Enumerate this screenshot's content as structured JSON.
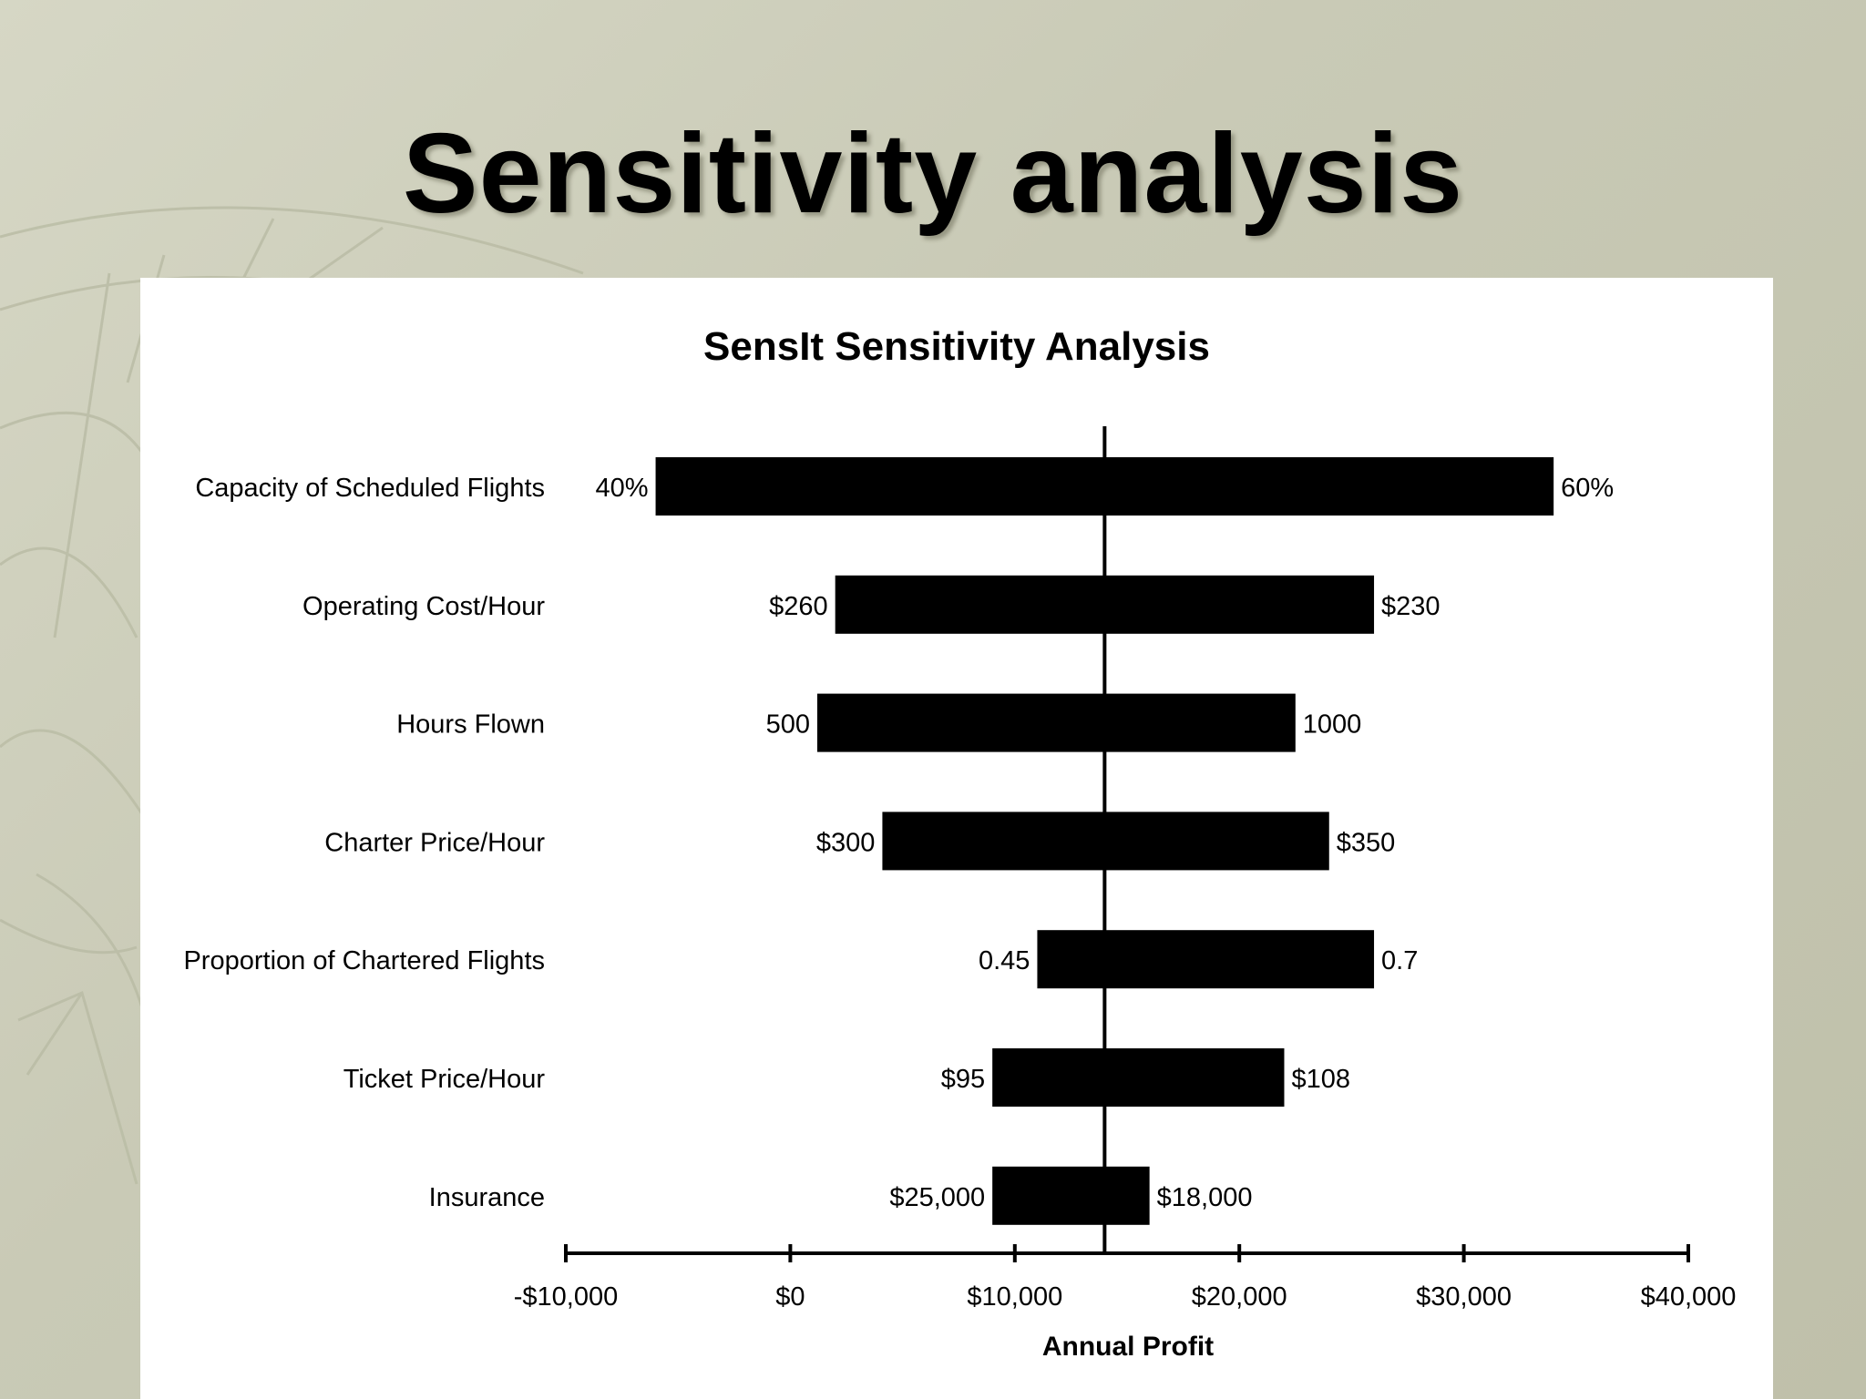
{
  "slide": {
    "title": "Sensitivity analysis"
  },
  "colors": {
    "bar": "#000000",
    "panel": "#ffffff",
    "background": "#c9cab6"
  },
  "chart_data": {
    "type": "bar",
    "orientation": "horizontal",
    "style": "tornado",
    "title": "SensIt Sensitivity Analysis",
    "xlabel": "Annual Profit",
    "ylabel": "",
    "xlim": [
      -10000,
      40000
    ],
    "x_ticks": [
      -10000,
      0,
      10000,
      20000,
      30000,
      40000
    ],
    "x_tick_labels": [
      "-$10,000",
      "$0",
      "$10,000",
      "$20,000",
      "$30,000",
      "$40,000"
    ],
    "base_value": 14000,
    "grid": false,
    "legend": "none",
    "categories": [
      "Capacity of Scheduled Flights",
      "Operating Cost/Hour",
      "Hours Flown",
      "Charter Price/Hour",
      "Proportion of Chartered Flights",
      "Ticket Price/Hour",
      "Insurance"
    ],
    "low_values": [
      -6000,
      2000,
      1200,
      4100,
      11000,
      9000,
      9000
    ],
    "high_values": [
      34000,
      26000,
      22500,
      24000,
      26000,
      22000,
      16000
    ],
    "low_labels": [
      "40%",
      "$260",
      "500",
      "$300",
      "0.45",
      "$95",
      "$25,000"
    ],
    "high_labels": [
      "60%",
      "$230",
      "1000",
      "$350",
      "0.7",
      "$108",
      "$18,000"
    ]
  }
}
